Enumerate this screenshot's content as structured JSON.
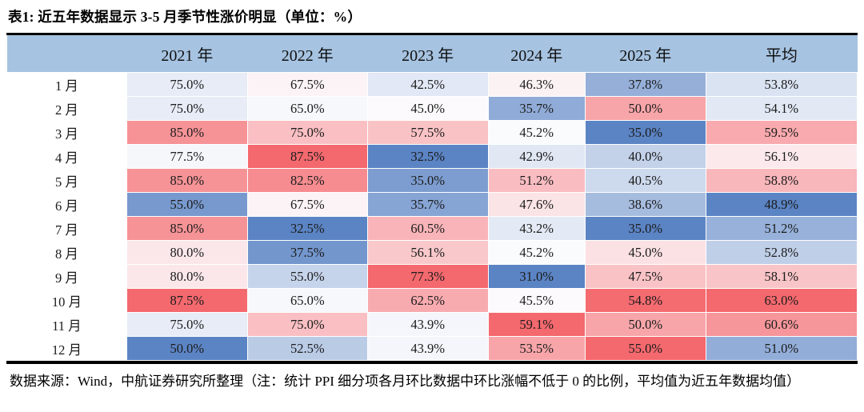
{
  "title": "表1: 近五年数据显示 3-5 月季节性涨价明显（单位：%）",
  "footer": {
    "text": "数据来源：Wind，中航证券研究所整理（注：统计 PPI 细分项各月环比数据中环比涨幅不低于 0 的比例，平均值为近五年数据均值）"
  },
  "colors": {
    "header_bg": "#a6c3e1",
    "rule": "#000000",
    "cell_text": "#1b1b1b"
  },
  "chart_data": {
    "type": "heatmap",
    "title": "表1: 近五年数据显示 3-5 月季节性涨价明显（单位：%）",
    "corner_label": "",
    "categories": [
      "1 月",
      "2 月",
      "3 月",
      "4 月",
      "5 月",
      "6 月",
      "7 月",
      "8 月",
      "9 月",
      "10 月",
      "11 月",
      "12 月"
    ],
    "columns": [
      "2021 年",
      "2022 年",
      "2023 年",
      "2024 年",
      "2025 年",
      "平均"
    ],
    "series": [
      {
        "name": "2021 年",
        "values": [
          75.0,
          75.0,
          85.0,
          77.5,
          85.0,
          55.0,
          85.0,
          80.0,
          80.0,
          87.5,
          75.0,
          50.0
        ]
      },
      {
        "name": "2022 年",
        "values": [
          67.5,
          65.0,
          75.0,
          87.5,
          82.5,
          67.5,
          32.5,
          37.5,
          55.0,
          65.0,
          75.0,
          52.5
        ]
      },
      {
        "name": "2023 年",
        "values": [
          42.5,
          45.0,
          57.5,
          32.5,
          35.0,
          35.7,
          60.5,
          56.1,
          77.3,
          62.5,
          43.9,
          43.9
        ]
      },
      {
        "name": "2024 年",
        "values": [
          46.3,
          35.7,
          45.2,
          42.9,
          51.2,
          47.6,
          43.2,
          45.2,
          31.0,
          45.5,
          59.1,
          53.5
        ]
      },
      {
        "name": "2025 年",
        "values": [
          37.8,
          50.0,
          35.0,
          40.0,
          40.5,
          38.6,
          35.0,
          45.0,
          47.5,
          54.8,
          50.0,
          55.0
        ]
      },
      {
        "name": "平均",
        "values": [
          53.8,
          54.1,
          59.5,
          56.1,
          58.8,
          48.9,
          51.2,
          52.8,
          58.1,
          63.0,
          60.6,
          51.0
        ]
      }
    ],
    "value_format": "one_decimal_percent",
    "color_scale": {
      "min_color": "#5b84c4",
      "mid_color": "#fcfcfe",
      "max_color": "#f4696e",
      "per_column": true,
      "midpoint": "median"
    }
  }
}
